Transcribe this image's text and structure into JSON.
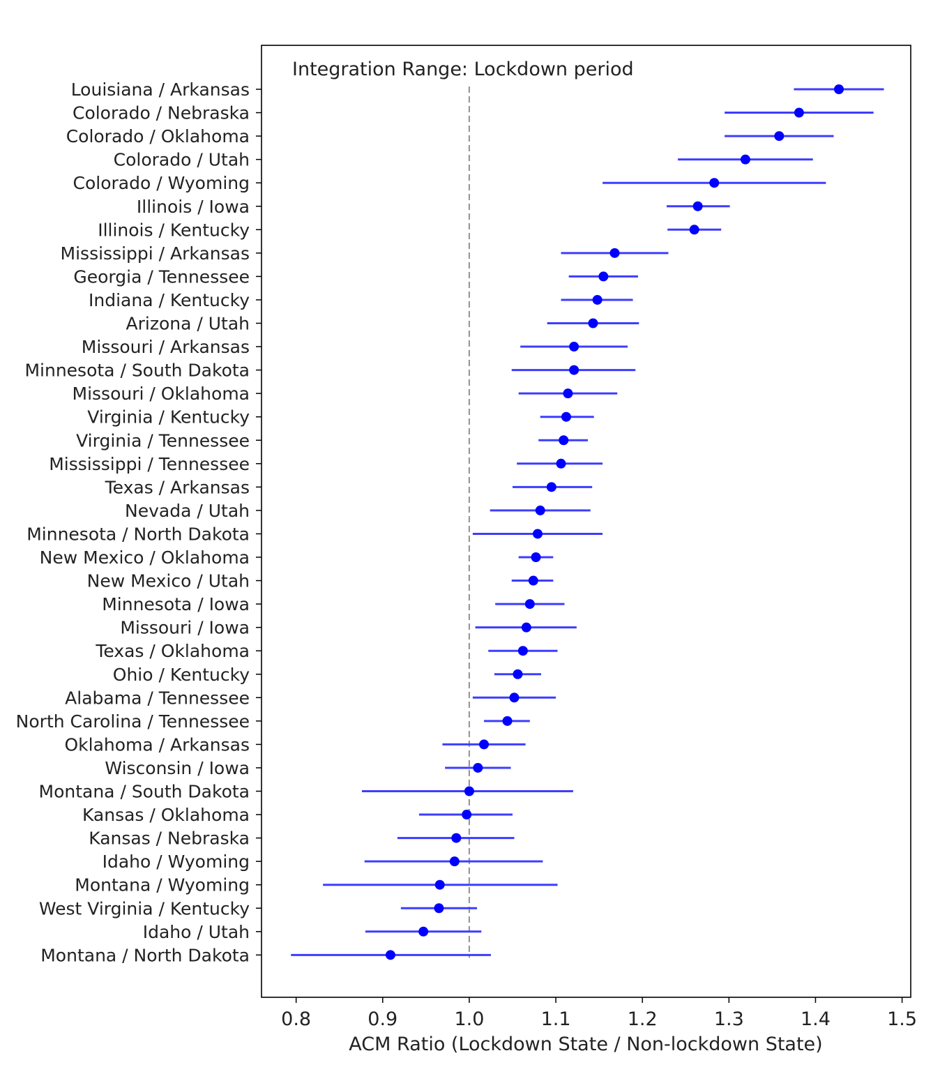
{
  "chart_data": {
    "type": "forest",
    "annotation": "Integration Range: Lockdown period",
    "xlabel": "ACM Ratio (Lockdown State / Non-lockdown State)",
    "xlim": [
      0.76,
      1.51
    ],
    "xticks": [
      0.8,
      0.9,
      1.0,
      1.1,
      1.2,
      1.3,
      1.4,
      1.5
    ],
    "xtick_labels": [
      "0.8",
      "0.9",
      "1.0",
      "1.1",
      "1.2",
      "1.3",
      "1.4",
      "1.5"
    ],
    "reference_line": 1.0,
    "colors": {
      "points": "#0000ff",
      "errorbars": "#3d3dff",
      "reference": "#999999",
      "axes": "#000000"
    },
    "pairs": [
      {
        "label": "Louisiana / Arkansas",
        "value": 1.427,
        "low": 1.375,
        "high": 1.479
      },
      {
        "label": "Colorado / Nebraska",
        "value": 1.381,
        "low": 1.295,
        "high": 1.467
      },
      {
        "label": "Colorado / Oklahoma",
        "value": 1.358,
        "low": 1.295,
        "high": 1.421
      },
      {
        "label": "Colorado / Utah",
        "value": 1.319,
        "low": 1.241,
        "high": 1.397
      },
      {
        "label": "Colorado / Wyoming",
        "value": 1.283,
        "low": 1.154,
        "high": 1.412
      },
      {
        "label": "Illinois / Iowa",
        "value": 1.264,
        "low": 1.228,
        "high": 1.301
      },
      {
        "label": "Illinois / Kentucky",
        "value": 1.26,
        "low": 1.229,
        "high": 1.291
      },
      {
        "label": "Mississippi / Arkansas",
        "value": 1.168,
        "low": 1.106,
        "high": 1.23
      },
      {
        "label": "Georgia / Tennessee",
        "value": 1.155,
        "low": 1.115,
        "high": 1.195
      },
      {
        "label": "Indiana / Kentucky",
        "value": 1.148,
        "low": 1.106,
        "high": 1.189
      },
      {
        "label": "Arizona / Utah",
        "value": 1.143,
        "low": 1.09,
        "high": 1.196
      },
      {
        "label": "Missouri / Arkansas",
        "value": 1.121,
        "low": 1.059,
        "high": 1.183
      },
      {
        "label": "Minnesota / South Dakota",
        "value": 1.121,
        "low": 1.049,
        "high": 1.192
      },
      {
        "label": "Missouri / Oklahoma",
        "value": 1.114,
        "low": 1.057,
        "high": 1.171
      },
      {
        "label": "Virginia / Kentucky",
        "value": 1.112,
        "low": 1.082,
        "high": 1.144
      },
      {
        "label": "Virginia / Tennessee",
        "value": 1.109,
        "low": 1.08,
        "high": 1.137
      },
      {
        "label": "Mississippi / Tennessee",
        "value": 1.106,
        "low": 1.055,
        "high": 1.154
      },
      {
        "label": "Texas / Arkansas",
        "value": 1.095,
        "low": 1.05,
        "high": 1.142
      },
      {
        "label": "Nevada / Utah",
        "value": 1.082,
        "low": 1.024,
        "high": 1.14
      },
      {
        "label": "Minnesota / North Dakota",
        "value": 1.079,
        "low": 1.004,
        "high": 1.154
      },
      {
        "label": "New Mexico / Oklahoma",
        "value": 1.077,
        "low": 1.057,
        "high": 1.097
      },
      {
        "label": "New Mexico / Utah",
        "value": 1.074,
        "low": 1.049,
        "high": 1.097
      },
      {
        "label": "Minnesota / Iowa",
        "value": 1.07,
        "low": 1.03,
        "high": 1.11
      },
      {
        "label": "Missouri / Iowa",
        "value": 1.066,
        "low": 1.007,
        "high": 1.124
      },
      {
        "label": "Texas / Oklahoma",
        "value": 1.062,
        "low": 1.022,
        "high": 1.102
      },
      {
        "label": "Ohio / Kentucky",
        "value": 1.056,
        "low": 1.029,
        "high": 1.083
      },
      {
        "label": "Alabama / Tennessee",
        "value": 1.052,
        "low": 1.004,
        "high": 1.1
      },
      {
        "label": "North Carolina / Tennessee",
        "value": 1.044,
        "low": 1.017,
        "high": 1.07
      },
      {
        "label": "Oklahoma / Arkansas",
        "value": 1.017,
        "low": 0.969,
        "high": 1.065
      },
      {
        "label": "Wisconsin / Iowa",
        "value": 1.01,
        "low": 0.972,
        "high": 1.048
      },
      {
        "label": "Montana / South Dakota",
        "value": 1.0,
        "low": 0.876,
        "high": 1.12
      },
      {
        "label": "Kansas / Oklahoma",
        "value": 0.997,
        "low": 0.942,
        "high": 1.05
      },
      {
        "label": "Kansas / Nebraska",
        "value": 0.985,
        "low": 0.917,
        "high": 1.052
      },
      {
        "label": "Idaho / Wyoming",
        "value": 0.983,
        "low": 0.879,
        "high": 1.085
      },
      {
        "label": "Montana / Wyoming",
        "value": 0.966,
        "low": 0.831,
        "high": 1.102
      },
      {
        "label": "West Virginia / Kentucky",
        "value": 0.965,
        "low": 0.921,
        "high": 1.009
      },
      {
        "label": "Idaho / Utah",
        "value": 0.947,
        "low": 0.88,
        "high": 1.014
      },
      {
        "label": "Montana / North Dakota",
        "value": 0.909,
        "low": 0.794,
        "high": 1.025
      }
    ]
  }
}
